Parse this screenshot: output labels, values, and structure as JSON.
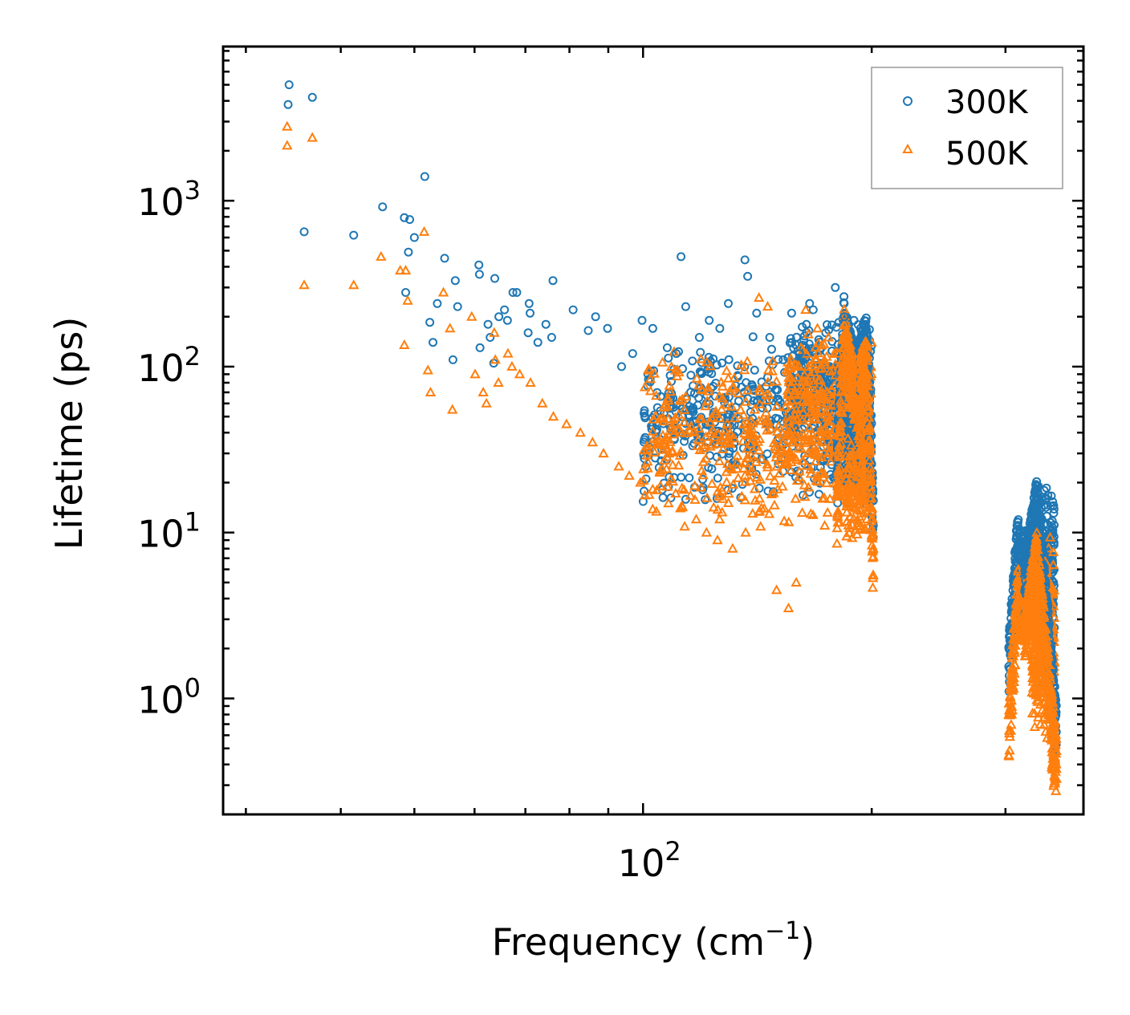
{
  "chart_data": {
    "type": "scatter",
    "title": "",
    "xlabel": "Frequency (cm",
    "xlabel_sup": "−1",
    "xlabel_close": ")",
    "ylabel": "Lifetime (ps)",
    "xscale": "log",
    "yscale": "log",
    "xlim": [
      28,
      380
    ],
    "ylim": [
      0.2,
      8500
    ],
    "x_tick_labels": [
      {
        "base": "10",
        "exp": "2",
        "value": 100
      }
    ],
    "y_tick_labels": [
      {
        "base": "10",
        "exp": "0",
        "value": 1
      },
      {
        "base": "10",
        "exp": "1",
        "value": 10
      },
      {
        "base": "10",
        "exp": "2",
        "value": 100
      },
      {
        "base": "10",
        "exp": "3",
        "value": 1000
      }
    ],
    "legend_position": "top-right",
    "series": [
      {
        "name": "300K",
        "marker": "circle",
        "color": "#1f77b4",
        "points": [
          [
            34.2,
            5000
          ],
          [
            34.1,
            3800
          ],
          [
            36.7,
            4200
          ],
          [
            35.8,
            650
          ],
          [
            41.6,
            620
          ],
          [
            45.4,
            920
          ],
          [
            48.5,
            790
          ],
          [
            49.3,
            770
          ],
          [
            50.0,
            600
          ],
          [
            51.6,
            1400
          ],
          [
            49.1,
            490
          ],
          [
            48.7,
            280
          ],
          [
            54.8,
            450
          ],
          [
            52.4,
            185
          ],
          [
            52.9,
            140
          ],
          [
            53.6,
            240
          ],
          [
            56.2,
            110
          ],
          [
            56.6,
            330
          ],
          [
            57.0,
            230
          ],
          [
            60.8,
            410
          ],
          [
            60.9,
            360
          ],
          [
            63.8,
            340
          ],
          [
            61.0,
            130
          ],
          [
            62.5,
            180
          ],
          [
            62.9,
            150
          ],
          [
            63.6,
            105
          ],
          [
            64.6,
            200
          ],
          [
            65.7,
            220
          ],
          [
            66.3,
            190
          ],
          [
            67.4,
            280
          ],
          [
            68.2,
            280
          ],
          [
            70.8,
            240
          ],
          [
            71.0,
            210
          ],
          [
            70.6,
            160
          ],
          [
            72.7,
            140
          ],
          [
            74.5,
            180
          ],
          [
            75.8,
            150
          ],
          [
            76.1,
            330
          ],
          [
            80.9,
            220
          ],
          [
            84.7,
            165
          ],
          [
            86.6,
            200
          ],
          [
            89.8,
            170
          ],
          [
            93.7,
            100
          ],
          [
            96.9,
            120
          ],
          [
            99.7,
            190
          ],
          [
            103.0,
            170
          ],
          [
            107.6,
            130
          ],
          [
            110.6,
            120
          ],
          [
            112.2,
            460
          ],
          [
            113.8,
            230
          ],
          [
            118.6,
            150
          ],
          [
            122.2,
            190
          ],
          [
            126.2,
            170
          ],
          [
            129.5,
            240
          ],
          [
            136.2,
            440
          ],
          [
            137.3,
            350
          ],
          [
            141.1,
            210
          ],
          [
            146.8,
            150
          ],
          [
            152.9,
            110
          ],
          [
            156.9,
            210
          ],
          [
            160.7,
            120
          ],
          [
            165.7,
            240
          ],
          [
            167.5,
            220
          ],
          [
            174.0,
            160
          ],
          [
            179.1,
            300
          ],
          [
            184.1,
            200
          ],
          [
            189.5,
            190
          ],
          [
            193.3,
            170
          ]
        ]
      },
      {
        "name": "500K",
        "marker": "triangle",
        "color": "#ff7f0e",
        "points": [
          [
            34.0,
            2800
          ],
          [
            34.0,
            2150
          ],
          [
            36.7,
            2400
          ],
          [
            35.8,
            310
          ],
          [
            41.6,
            310
          ],
          [
            45.2,
            460
          ],
          [
            47.9,
            380
          ],
          [
            48.7,
            380
          ],
          [
            49.0,
            250
          ],
          [
            48.5,
            135
          ],
          [
            51.5,
            650
          ],
          [
            52.1,
            95
          ],
          [
            52.5,
            70
          ],
          [
            54.6,
            280
          ],
          [
            55.7,
            170
          ],
          [
            56.1,
            55
          ],
          [
            59.5,
            200
          ],
          [
            60.1,
            90
          ],
          [
            61.6,
            70
          ],
          [
            62.2,
            60
          ],
          [
            63.7,
            160
          ],
          [
            63.9,
            110
          ],
          [
            64.5,
            80
          ],
          [
            66.4,
            120
          ],
          [
            67.2,
            100
          ],
          [
            68.8,
            90
          ],
          [
            71.1,
            80
          ],
          [
            73.7,
            60
          ],
          [
            76.2,
            50
          ],
          [
            79.3,
            45
          ],
          [
            82.7,
            40
          ],
          [
            85.8,
            35
          ],
          [
            88.7,
            30
          ],
          [
            92.9,
            25
          ],
          [
            95.9,
            22
          ],
          [
            99.2,
            20
          ],
          [
            104.3,
            18
          ],
          [
            108.0,
            15
          ],
          [
            112.0,
            14
          ],
          [
            117.5,
            12
          ],
          [
            121.2,
            10
          ],
          [
            125.3,
            9
          ],
          [
            131.2,
            8
          ],
          [
            136.5,
            10
          ],
          [
            139.4,
            13
          ],
          [
            142.1,
            260
          ],
          [
            145.9,
            230
          ],
          [
            149.9,
            4.5
          ],
          [
            155.4,
            3.5
          ],
          [
            159.1,
            5
          ],
          [
            163.7,
            220
          ],
          [
            169.7,
            170
          ],
          [
            175.4,
            150
          ],
          [
            180.6,
            120
          ],
          [
            186.7,
            110
          ],
          [
            192.7,
            80
          ]
        ]
      }
    ],
    "clusters": [
      {
        "series": 0,
        "x": [
          100,
          200
        ],
        "y": [
          14,
          160
        ],
        "n": 520
      },
      {
        "series": 1,
        "x": [
          100,
          200
        ],
        "y": [
          10,
          130
        ],
        "n": 520
      },
      {
        "series": 0,
        "x": [
          155,
          200
        ],
        "y": [
          35,
          200
        ],
        "n": 260
      },
      {
        "series": 1,
        "x": [
          155,
          200
        ],
        "y": [
          25,
          180
        ],
        "n": 260
      },
      {
        "series": 0,
        "x": [
          185,
          198
        ],
        "y": [
          14,
          55
        ],
        "n": 140
      },
      {
        "series": 1,
        "x": [
          185,
          198
        ],
        "y": [
          8,
          40
        ],
        "n": 140
      },
      {
        "series": 0,
        "x": [
          325,
          348
        ],
        "y": [
          1.8,
          20
        ],
        "n": 320
      },
      {
        "series": 1,
        "x": [
          325,
          348
        ],
        "y": [
          0.55,
          10
        ],
        "n": 320
      },
      {
        "series": 1,
        "x": [
          345,
          350
        ],
        "y": [
          0.26,
          0.6
        ],
        "n": 30
      }
    ],
    "peaks": [
      {
        "series": 0,
        "x0": 180,
        "xp": 184,
        "x1": 198,
        "ylo": 30,
        "yp": 260,
        "yh": 200,
        "ye": 55,
        "n": 150
      },
      {
        "series": 1,
        "x0": 180,
        "xp": 184,
        "x1": 198,
        "ylo": 15,
        "yp": 200,
        "yh": 180,
        "ye": 40,
        "n": 150
      },
      {
        "series": 0,
        "x0": 193,
        "xp": 197,
        "x1": 201,
        "ylo": 140,
        "yp": 180,
        "yh": 170,
        "ye": 14,
        "n": 70
      },
      {
        "series": 1,
        "x0": 193,
        "xp": 197,
        "x1": 201,
        "ylo": 100,
        "yp": 140,
        "yh": 130,
        "ye": 7,
        "n": 70
      },
      {
        "series": 0,
        "x0": 303,
        "xp": 312,
        "x1": 325,
        "ylo": 2.0,
        "yp": 14,
        "yh": 9,
        "ye": 9,
        "n": 110
      },
      {
        "series": 1,
        "x0": 303,
        "xp": 312,
        "x1": 325,
        "ylo": 0.8,
        "yp": 6,
        "yh": 4.5,
        "ye": 4.5,
        "n": 110
      },
      {
        "series": 0,
        "x0": 318,
        "xp": 330,
        "x1": 350,
        "ylo": 6,
        "yp": 20,
        "yh": 18,
        "ye": 0.8,
        "n": 160
      },
      {
        "series": 1,
        "x0": 318,
        "xp": 330,
        "x1": 350,
        "ylo": 3,
        "yp": 9,
        "yh": 8,
        "ye": 0.5,
        "n": 160
      }
    ]
  }
}
